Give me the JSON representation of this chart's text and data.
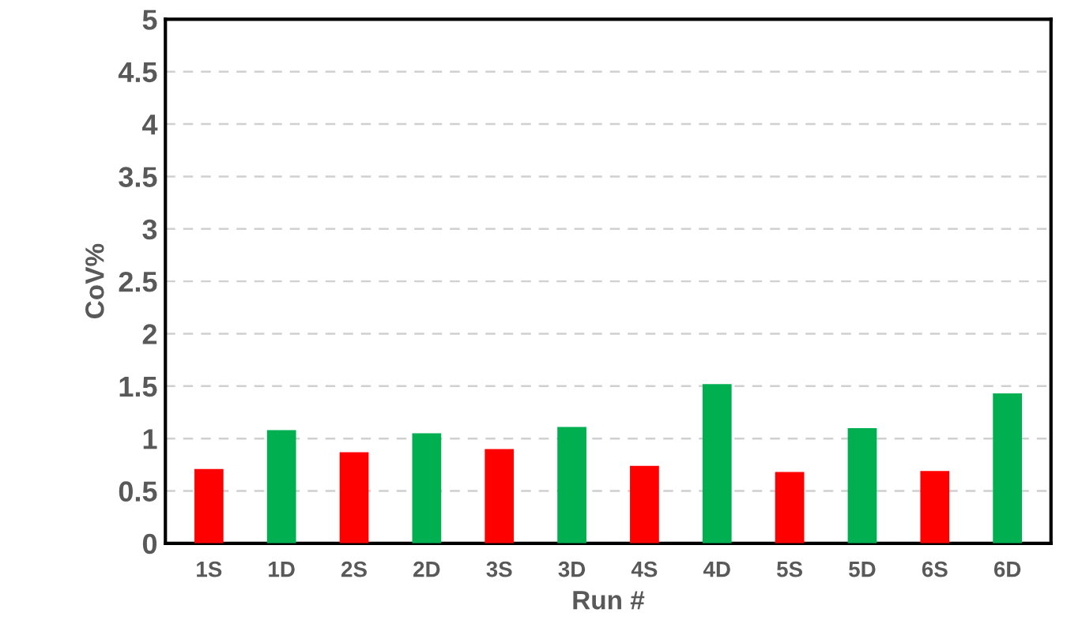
{
  "chart_data": {
    "type": "bar",
    "xlabel": "Run #",
    "ylabel": "CoV%",
    "categories": [
      "1S",
      "1D",
      "2S",
      "2D",
      "3S",
      "3D",
      "4S",
      "4D",
      "5S",
      "5D",
      "6S",
      "6D"
    ],
    "values": [
      0.71,
      1.08,
      0.87,
      1.05,
      0.9,
      1.11,
      0.74,
      1.52,
      0.68,
      1.1,
      0.69,
      1.43
    ],
    "colors": [
      "#ff0000",
      "#00b050",
      "#ff0000",
      "#00b050",
      "#ff0000",
      "#00b050",
      "#ff0000",
      "#00b050",
      "#ff0000",
      "#00b050",
      "#ff0000",
      "#00b050"
    ],
    "ylim": [
      0,
      5
    ],
    "yticks": [
      0,
      0.5,
      1,
      1.5,
      2,
      2.5,
      3,
      3.5,
      4,
      4.5,
      5
    ],
    "grid": "y",
    "legend": false
  }
}
